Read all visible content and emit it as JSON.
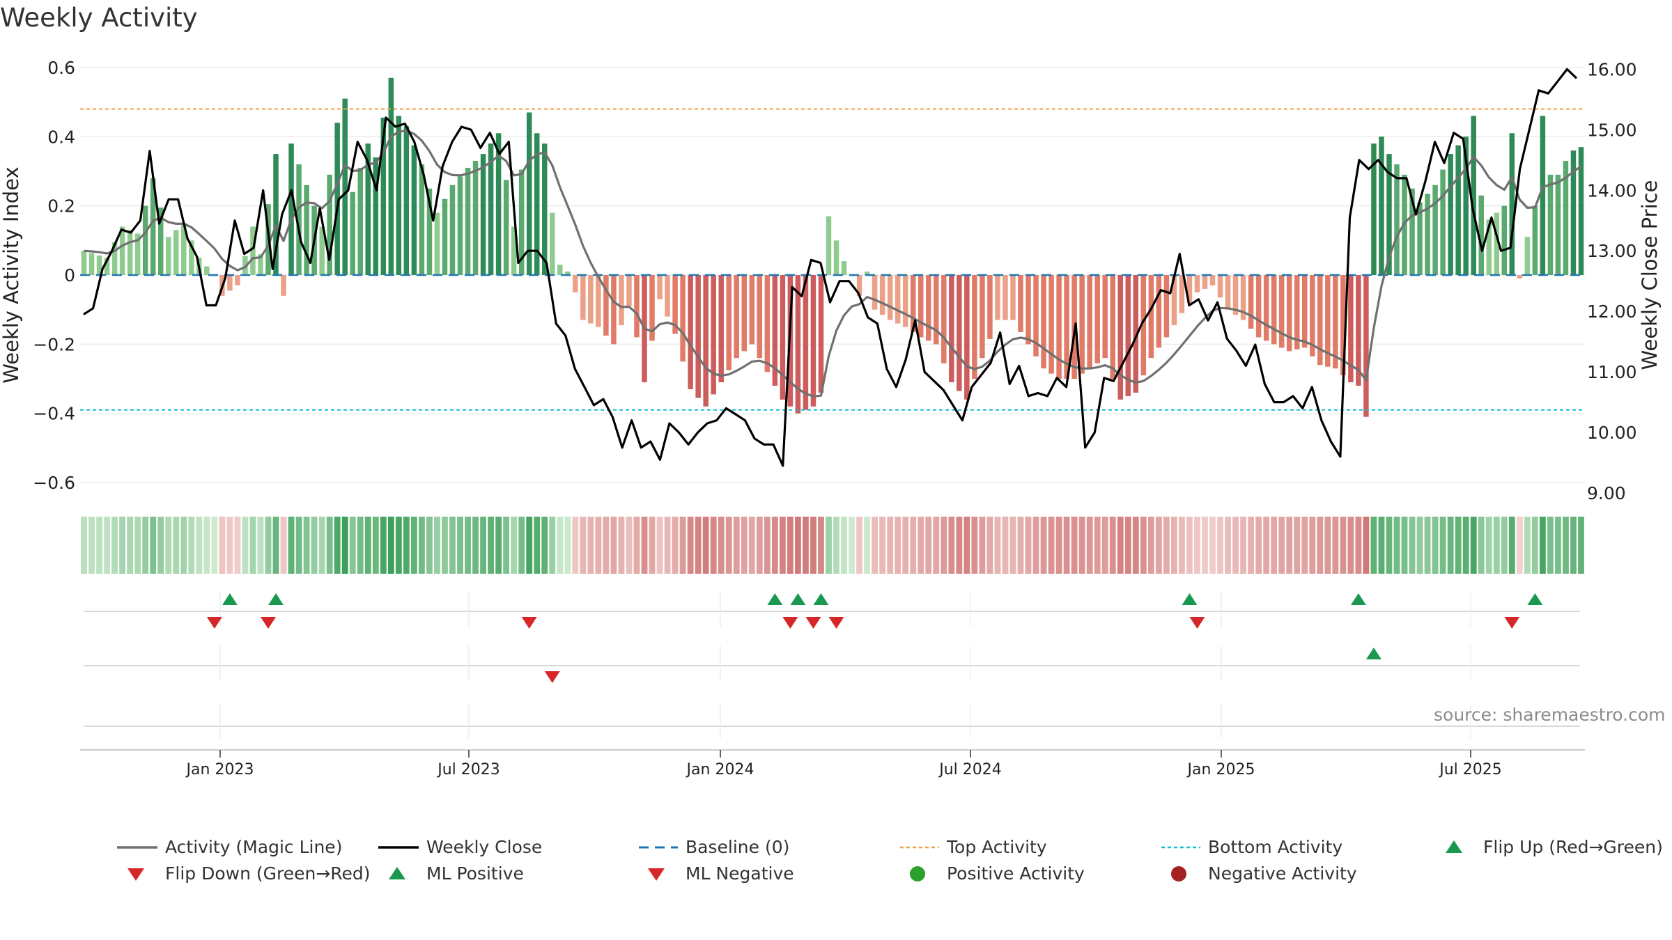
{
  "chart_data": {
    "type": "bar",
    "title": "Weekly Activity",
    "source": "source: sharemaestro.com",
    "ylabel": "Weekly Activity Index",
    "y2label": "Weekly Close Price",
    "ylim": [
      -0.63,
      0.63
    ],
    "y2lim": [
      9.0,
      16.2
    ],
    "yticks": [
      "0.6",
      "0.4",
      "0.2",
      "0",
      "−0.2",
      "−0.4",
      "−0.6"
    ],
    "y2ticks": [
      "16.00",
      "15.00",
      "14.00",
      "13.00",
      "12.00",
      "11.00",
      "10.00",
      "9.00"
    ],
    "xticks": [
      "Jan 2023",
      "Jul 2023",
      "Jan 2024",
      "Jul 2024",
      "Jan 2025",
      "Jul 2025"
    ],
    "top_level": 0.48,
    "bottom_level": -0.39,
    "activity_keypoints": [
      [
        0,
        0.07
      ],
      [
        3,
        0.05
      ],
      [
        5,
        0.14
      ],
      [
        7,
        0.12
      ],
      [
        9,
        0.28
      ],
      [
        11,
        0.11
      ],
      [
        13,
        0.15
      ],
      [
        15,
        0.05
      ],
      [
        17,
        0.0
      ],
      [
        18,
        -0.06
      ],
      [
        20,
        -0.03
      ],
      [
        22,
        0.14
      ],
      [
        23,
        0.06
      ],
      [
        25,
        0.35
      ],
      [
        26,
        -0.06
      ],
      [
        27,
        0.38
      ],
      [
        29,
        0.26
      ],
      [
        31,
        0.14
      ],
      [
        33,
        0.44
      ],
      [
        34,
        0.51
      ],
      [
        35,
        0.24
      ],
      [
        37,
        0.38
      ],
      [
        38,
        0.34
      ],
      [
        40,
        0.57
      ],
      [
        41,
        0.46
      ],
      [
        42,
        0.43
      ],
      [
        44,
        0.32
      ],
      [
        46,
        0.18
      ],
      [
        48,
        0.26
      ],
      [
        50,
        0.31
      ],
      [
        52,
        0.35
      ],
      [
        54,
        0.41
      ],
      [
        56,
        0.14
      ],
      [
        58,
        0.47
      ],
      [
        59,
        0.41
      ],
      [
        60,
        0.38
      ],
      [
        61,
        0.18
      ],
      [
        62,
        0.03
      ],
      [
        63,
        0.01
      ],
      [
        64,
        -0.05
      ],
      [
        65,
        -0.13
      ],
      [
        67,
        -0.15
      ],
      [
        69,
        -0.2
      ],
      [
        71,
        -0.09
      ],
      [
        72,
        -0.18
      ],
      [
        73,
        -0.31
      ],
      [
        75,
        -0.07
      ],
      [
        77,
        -0.17
      ],
      [
        79,
        -0.33
      ],
      [
        81,
        -0.38
      ],
      [
        83,
        -0.31
      ],
      [
        85,
        -0.24
      ],
      [
        87,
        -0.2
      ],
      [
        89,
        -0.28
      ],
      [
        91,
        -0.36
      ],
      [
        93,
        -0.4
      ],
      [
        95,
        -0.38
      ],
      [
        96,
        -0.34
      ],
      [
        97,
        0.17
      ],
      [
        98,
        0.1
      ],
      [
        99,
        0.04
      ],
      [
        100,
        0.0
      ],
      [
        101,
        -0.06
      ],
      [
        102,
        0.01
      ],
      [
        103,
        -0.1
      ],
      [
        105,
        -0.13
      ],
      [
        107,
        -0.15
      ],
      [
        109,
        -0.18
      ],
      [
        111,
        -0.2
      ],
      [
        113,
        -0.31
      ],
      [
        115,
        -0.36
      ],
      [
        117,
        -0.24
      ],
      [
        119,
        -0.13
      ],
      [
        121,
        -0.13
      ],
      [
        123,
        -0.2
      ],
      [
        125,
        -0.27
      ],
      [
        127,
        -0.3
      ],
      [
        129,
        -0.3
      ],
      [
        131,
        -0.27
      ],
      [
        133,
        -0.24
      ],
      [
        135,
        -0.36
      ],
      [
        137,
        -0.34
      ],
      [
        139,
        -0.24
      ],
      [
        141,
        -0.18
      ],
      [
        143,
        -0.11
      ],
      [
        145,
        -0.05
      ],
      [
        147,
        -0.03
      ],
      [
        149,
        -0.1
      ],
      [
        151,
        -0.13
      ],
      [
        153,
        -0.18
      ],
      [
        155,
        -0.2
      ],
      [
        157,
        -0.22
      ],
      [
        159,
        -0.21
      ],
      [
        161,
        -0.26
      ],
      [
        163,
        -0.27
      ],
      [
        165,
        -0.31
      ],
      [
        166,
        -0.32
      ],
      [
        167,
        -0.41
      ],
      [
        168,
        0.38
      ],
      [
        169,
        0.4
      ],
      [
        170,
        0.35
      ],
      [
        172,
        0.29
      ],
      [
        174,
        0.21
      ],
      [
        176,
        0.26
      ],
      [
        178,
        0.35
      ],
      [
        180,
        0.4
      ],
      [
        181,
        0.46
      ],
      [
        182,
        0.23
      ],
      [
        183,
        0.16
      ],
      [
        185,
        0.2
      ],
      [
        186,
        0.41
      ],
      [
        187,
        -0.01
      ],
      [
        188,
        0.11
      ],
      [
        189,
        0.2
      ],
      [
        190,
        0.46
      ],
      [
        191,
        0.29
      ],
      [
        192,
        0.29
      ],
      [
        193,
        0.33
      ],
      [
        194,
        0.36
      ],
      [
        195,
        0.37
      ]
    ],
    "close_keypoints": [
      [
        0,
        11.95
      ],
      [
        1,
        12.05
      ],
      [
        2,
        12.7
      ],
      [
        3,
        13.0
      ],
      [
        4,
        13.35
      ],
      [
        5,
        13.3
      ],
      [
        6,
        13.5
      ],
      [
        7,
        14.65
      ],
      [
        8,
        13.45
      ],
      [
        9,
        13.85
      ],
      [
        10,
        13.85
      ],
      [
        11,
        13.2
      ],
      [
        12,
        12.9
      ],
      [
        13,
        12.1
      ],
      [
        14,
        12.1
      ],
      [
        15,
        12.55
      ],
      [
        16,
        13.5
      ],
      [
        17,
        12.95
      ],
      [
        18,
        13.05
      ],
      [
        19,
        14.0
      ],
      [
        20,
        12.7
      ],
      [
        21,
        13.6
      ],
      [
        22,
        14.0
      ],
      [
        23,
        13.15
      ],
      [
        24,
        12.8
      ],
      [
        25,
        13.7
      ],
      [
        26,
        12.85
      ],
      [
        27,
        13.85
      ],
      [
        28,
        14.0
      ],
      [
        29,
        14.8
      ],
      [
        30,
        14.5
      ],
      [
        31,
        14.0
      ],
      [
        32,
        15.2
      ],
      [
        33,
        15.05
      ],
      [
        34,
        15.1
      ],
      [
        35,
        14.8
      ],
      [
        36,
        14.25
      ],
      [
        37,
        13.5
      ],
      [
        38,
        14.4
      ],
      [
        39,
        14.8
      ],
      [
        40,
        15.05
      ],
      [
        41,
        15.0
      ],
      [
        42,
        14.7
      ],
      [
        43,
        14.95
      ],
      [
        44,
        14.6
      ],
      [
        45,
        14.8
      ],
      [
        46,
        12.8
      ],
      [
        47,
        13.0
      ],
      [
        48,
        13.0
      ],
      [
        49,
        12.8
      ],
      [
        50,
        11.8
      ],
      [
        51,
        11.6
      ],
      [
        52,
        11.05
      ],
      [
        53,
        10.75
      ],
      [
        54,
        10.45
      ],
      [
        55,
        10.55
      ],
      [
        56,
        10.25
      ],
      [
        57,
        9.75
      ],
      [
        58,
        10.2
      ],
      [
        59,
        9.75
      ],
      [
        60,
        9.85
      ],
      [
        61,
        9.55
      ],
      [
        62,
        10.15
      ],
      [
        63,
        10.0
      ],
      [
        64,
        9.8
      ],
      [
        65,
        10.0
      ],
      [
        66,
        10.15
      ],
      [
        67,
        10.2
      ],
      [
        68,
        10.4
      ],
      [
        69,
        10.3
      ],
      [
        70,
        10.2
      ],
      [
        71,
        9.9
      ],
      [
        72,
        9.8
      ],
      [
        73,
        9.8
      ],
      [
        74,
        9.45
      ],
      [
        75,
        12.4
      ],
      [
        76,
        12.25
      ],
      [
        77,
        12.85
      ],
      [
        78,
        12.8
      ],
      [
        79,
        12.15
      ],
      [
        80,
        12.5
      ],
      [
        81,
        12.5
      ],
      [
        82,
        12.3
      ],
      [
        83,
        11.9
      ],
      [
        84,
        11.8
      ],
      [
        85,
        11.05
      ],
      [
        86,
        10.75
      ],
      [
        87,
        11.2
      ],
      [
        88,
        11.85
      ],
      [
        89,
        11.0
      ],
      [
        90,
        10.85
      ],
      [
        91,
        10.7
      ],
      [
        92,
        10.45
      ],
      [
        93,
        10.2
      ],
      [
        94,
        10.75
      ],
      [
        95,
        10.95
      ],
      [
        96,
        11.15
      ],
      [
        97,
        11.65
      ],
      [
        98,
        10.8
      ],
      [
        99,
        11.1
      ],
      [
        100,
        10.6
      ],
      [
        101,
        10.65
      ],
      [
        102,
        10.6
      ],
      [
        103,
        10.9
      ],
      [
        104,
        10.75
      ],
      [
        105,
        11.8
      ],
      [
        106,
        9.75
      ],
      [
        107,
        10.0
      ],
      [
        108,
        10.9
      ],
      [
        109,
        10.85
      ],
      [
        110,
        11.15
      ],
      [
        111,
        11.45
      ],
      [
        112,
        11.8
      ],
      [
        113,
        12.05
      ],
      [
        114,
        12.35
      ],
      [
        115,
        12.3
      ],
      [
        116,
        12.95
      ],
      [
        117,
        12.1
      ],
      [
        118,
        12.2
      ],
      [
        119,
        11.85
      ],
      [
        120,
        12.15
      ],
      [
        121,
        11.55
      ],
      [
        122,
        11.35
      ],
      [
        123,
        11.1
      ],
      [
        124,
        11.45
      ],
      [
        125,
        10.8
      ],
      [
        126,
        10.5
      ],
      [
        127,
        10.5
      ],
      [
        128,
        10.6
      ],
      [
        129,
        10.4
      ],
      [
        130,
        10.75
      ],
      [
        131,
        10.2
      ],
      [
        132,
        9.85
      ],
      [
        133,
        9.6
      ],
      [
        134,
        13.55
      ],
      [
        135,
        14.5
      ],
      [
        136,
        14.35
      ],
      [
        137,
        14.5
      ],
      [
        138,
        14.3
      ],
      [
        139,
        14.2
      ],
      [
        140,
        14.2
      ],
      [
        141,
        13.6
      ],
      [
        142,
        14.15
      ],
      [
        143,
        14.8
      ],
      [
        144,
        14.45
      ],
      [
        145,
        14.95
      ],
      [
        146,
        14.85
      ],
      [
        147,
        13.7
      ],
      [
        148,
        13.0
      ],
      [
        149,
        13.55
      ],
      [
        150,
        13.0
      ],
      [
        151,
        13.05
      ],
      [
        152,
        14.35
      ],
      [
        153,
        15.0
      ],
      [
        154,
        15.65
      ],
      [
        155,
        15.6
      ],
      [
        156,
        15.8
      ],
      [
        157,
        16.0
      ],
      [
        158,
        15.85
      ]
    ],
    "series": [
      {
        "name": "Activity (Magic Line)",
        "color": "#707070"
      },
      {
        "name": "Weekly Close",
        "color": "#000000"
      },
      {
        "name": "Baseline (0)",
        "color": "#1f77b4"
      },
      {
        "name": "Top Activity",
        "color": "#f0a040"
      },
      {
        "name": "Bottom Activity",
        "color": "#17becf"
      }
    ],
    "signals": {
      "flip_up": [
        19,
        25,
        90,
        93,
        96,
        144,
        166,
        189
      ],
      "flip_down": [
        17,
        24,
        58,
        92,
        95,
        98,
        145,
        186
      ],
      "ml_positive": [
        168
      ],
      "ml_negative": [
        61
      ]
    },
    "legend": {
      "placement": "bottom",
      "items": [
        {
          "label": "Activity (Magic Line)",
          "kind": "line",
          "color": "#707070"
        },
        {
          "label": "Weekly Close",
          "kind": "line",
          "color": "#000000"
        },
        {
          "label": "Baseline (0)",
          "kind": "dash",
          "color": "#1f77b4"
        },
        {
          "label": "Top Activity",
          "kind": "dot",
          "color": "#f0a040"
        },
        {
          "label": "Bottom Activity",
          "kind": "dot",
          "color": "#17becf"
        },
        {
          "label": "Flip Up (Red→Green)",
          "kind": "up",
          "color": "#1a9850"
        },
        {
          "label": "Flip Down (Green→Red)",
          "kind": "down",
          "color": "#d62728"
        },
        {
          "label": "ML Positive",
          "kind": "up",
          "color": "#1a9850"
        },
        {
          "label": "ML Negative",
          "kind": "down",
          "color": "#d62728"
        },
        {
          "label": "Positive Activity",
          "kind": "circle",
          "color": "#2ca02c"
        },
        {
          "label": "Negative Activity",
          "kind": "circle",
          "color": "#a52020"
        }
      ]
    }
  }
}
